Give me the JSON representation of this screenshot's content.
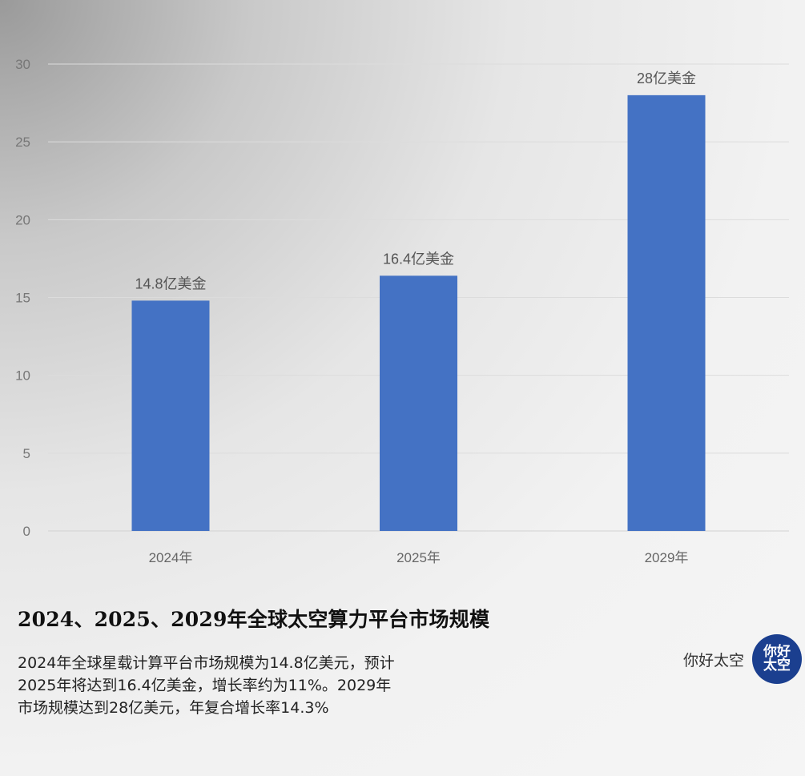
{
  "chart_data": {
    "type": "bar",
    "title": "2024、2025、2029年全球太空算力平台市场规模",
    "categories": [
      "2024年",
      "2025年",
      "2029年"
    ],
    "values": [
      14.8,
      16.4,
      28
    ],
    "data_labels": [
      "14.8亿美金",
      "16.4亿美金",
      "28亿美金"
    ],
    "y_ticks": [
      0,
      5,
      10,
      15,
      20,
      25,
      30
    ],
    "ylim": [
      0,
      30
    ],
    "xlabel": "",
    "ylabel": "",
    "grid": true,
    "bar_color": "#4472c4"
  },
  "description": "2024年全球星载计算平台市场规模为14.8亿美元，预计2025年将达到16.4亿美金，增长率约为11%。2029年市场规模达到28亿美元，年复合增长率14.3%",
  "brand": {
    "name": "你好太空",
    "logo_text": "你好太空",
    "logo_color": "#1b3f8f"
  }
}
